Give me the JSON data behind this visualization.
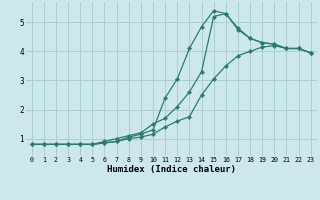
{
  "bg_color": "#cce8ec",
  "grid_color": "#aacdd4",
  "line_color": "#2d7a72",
  "marker_color": "#2d7a72",
  "xlabel": "Humidex (Indice chaleur)",
  "xlim": [
    -0.5,
    23.5
  ],
  "ylim": [
    0.4,
    5.7
  ],
  "yticks": [
    1,
    2,
    3,
    4,
    5
  ],
  "xticks": [
    0,
    1,
    2,
    3,
    4,
    5,
    6,
    7,
    8,
    9,
    10,
    11,
    12,
    13,
    14,
    15,
    16,
    17,
    18,
    19,
    20,
    21,
    22,
    23
  ],
  "line1_x": [
    0,
    1,
    2,
    3,
    4,
    5,
    6,
    7,
    8,
    9,
    10,
    11,
    12,
    13,
    14,
    15,
    16,
    17,
    18,
    19,
    20,
    21,
    22,
    23
  ],
  "line1_y": [
    0.8,
    0.8,
    0.8,
    0.8,
    0.8,
    0.8,
    0.85,
    0.9,
    1.0,
    1.05,
    1.15,
    1.4,
    1.6,
    1.75,
    2.5,
    3.05,
    3.5,
    3.85,
    4.0,
    4.15,
    4.2,
    4.1,
    4.1,
    3.95
  ],
  "line2_x": [
    0,
    1,
    2,
    3,
    4,
    5,
    6,
    7,
    8,
    9,
    10,
    11,
    12,
    13,
    14,
    15,
    16,
    17,
    18,
    19,
    20,
    21,
    22,
    23
  ],
  "line2_y": [
    0.8,
    0.8,
    0.8,
    0.8,
    0.8,
    0.8,
    0.85,
    0.9,
    1.05,
    1.15,
    1.3,
    2.4,
    3.05,
    4.1,
    4.85,
    5.4,
    5.3,
    4.75,
    4.45,
    4.3,
    4.25,
    4.1,
    4.1,
    3.95
  ],
  "line3_x": [
    0,
    1,
    2,
    3,
    4,
    5,
    6,
    7,
    8,
    9,
    10,
    11,
    12,
    13,
    14,
    15,
    16,
    17,
    18,
    19,
    20,
    21,
    22,
    23
  ],
  "line3_y": [
    0.8,
    0.8,
    0.8,
    0.8,
    0.8,
    0.8,
    0.9,
    1.0,
    1.1,
    1.2,
    1.5,
    1.7,
    2.1,
    2.6,
    3.3,
    5.2,
    5.3,
    4.8,
    4.45,
    4.3,
    4.25,
    4.1,
    4.1,
    3.95
  ]
}
